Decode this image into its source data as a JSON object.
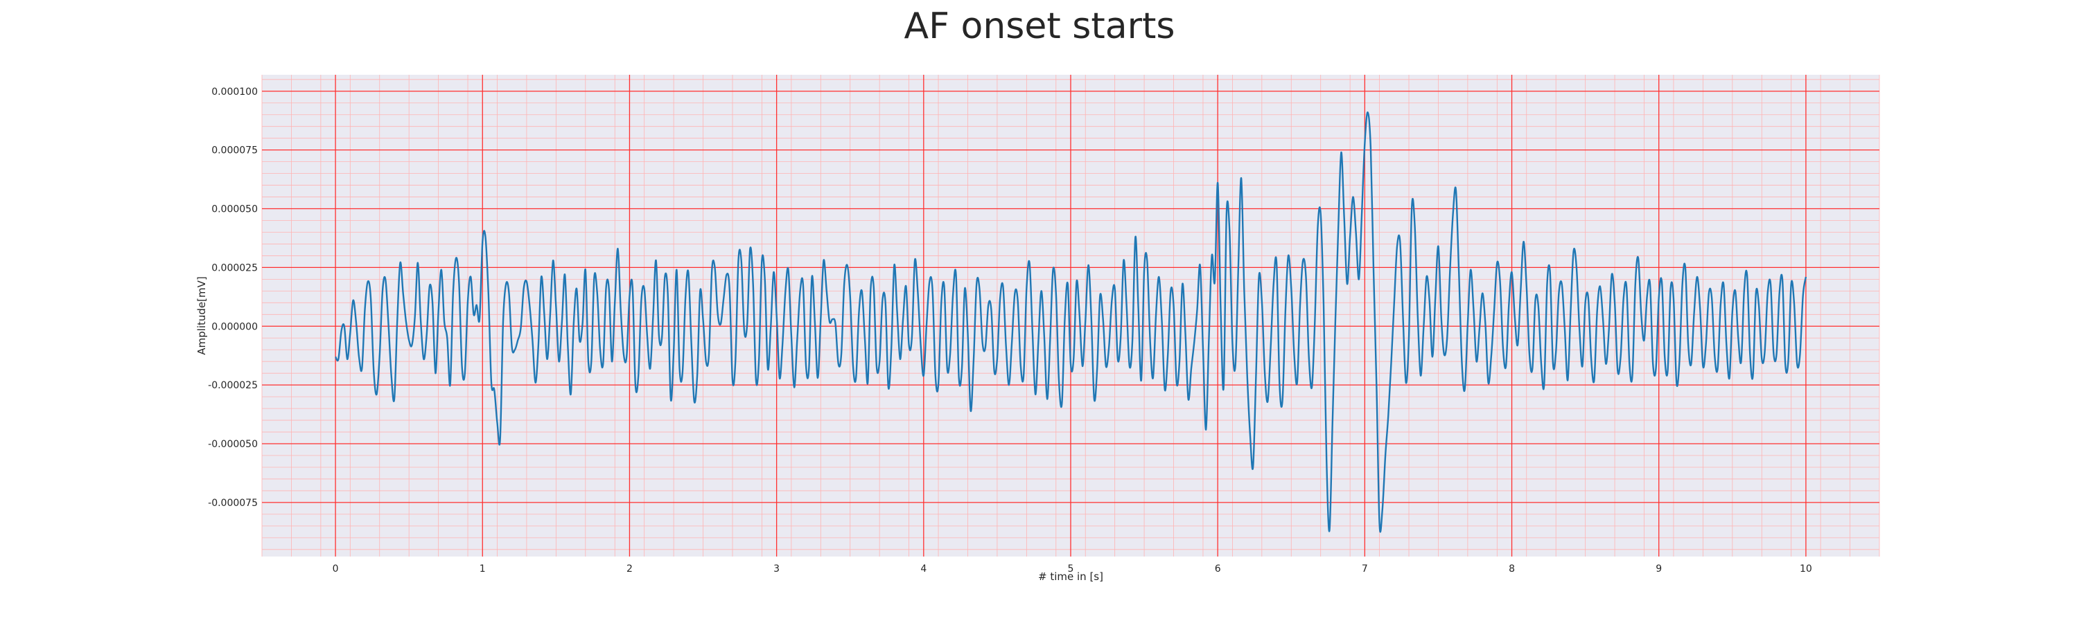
{
  "chart_data": {
    "type": "line",
    "title": "AF onset starts",
    "xlabel": "# time in [s]",
    "ylabel": "Amplitude[mV]",
    "xlim": [
      -0.5,
      10.5
    ],
    "ylim": [
      -9.8e-05,
      0.000107
    ],
    "xticks": [
      0,
      1,
      2,
      3,
      4,
      5,
      6,
      7,
      8,
      9,
      10
    ],
    "xtick_labels": [
      "0",
      "1",
      "2",
      "3",
      "4",
      "5",
      "6",
      "7",
      "8",
      "9",
      "10"
    ],
    "yticks": [
      0.0001,
      7.5e-05,
      5e-05,
      2.5e-05,
      0,
      -2.5e-05,
      -5e-05,
      -7.5e-05
    ],
    "ytick_labels": [
      "0.000100",
      "0.000075",
      "0.000050",
      "0.000025",
      "0.000000",
      "-0.000025",
      "-0.000050",
      "-0.000075"
    ],
    "grid": true,
    "series": [
      {
        "color": "#1f77b4",
        "x": [
          0,
          0.02,
          0.04,
          0.06,
          0.08,
          0.1,
          0.12,
          0.14,
          0.16,
          0.18,
          0.2,
          0.22,
          0.24,
          0.26,
          0.28,
          0.3,
          0.32,
          0.34,
          0.36,
          0.38,
          0.4,
          0.42,
          0.44,
          0.46,
          0.48,
          0.5,
          0.52,
          0.54,
          0.56,
          0.58,
          0.6,
          0.62,
          0.64,
          0.66,
          0.68,
          0.7,
          0.72,
          0.74,
          0.76,
          0.78,
          0.8,
          0.82,
          0.84,
          0.86,
          0.88,
          0.9,
          0.92,
          0.94,
          0.96,
          0.98,
          1,
          1.02,
          1.04,
          1.06,
          1.08,
          1.1,
          1.12,
          1.14,
          1.16,
          1.18,
          1.2,
          1.22,
          1.24,
          1.26,
          1.28,
          1.3,
          1.32,
          1.34,
          1.36,
          1.38,
          1.4,
          1.42,
          1.44,
          1.46,
          1.48,
          1.5,
          1.52,
          1.54,
          1.56,
          1.58,
          1.6,
          1.62,
          1.64,
          1.66,
          1.68,
          1.7,
          1.72,
          1.74,
          1.76,
          1.78,
          1.8,
          1.82,
          1.84,
          1.86,
          1.88,
          1.9,
          1.92,
          1.94,
          1.96,
          1.98,
          2,
          2.02,
          2.04,
          2.06,
          2.08,
          2.1,
          2.12,
          2.14,
          2.16,
          2.18,
          2.2,
          2.22,
          2.24,
          2.26,
          2.28,
          2.3,
          2.32,
          2.34,
          2.36,
          2.38,
          2.4,
          2.42,
          2.44,
          2.46,
          2.48,
          2.5,
          2.52,
          2.54,
          2.56,
          2.58,
          2.6,
          2.62,
          2.64,
          2.66,
          2.68,
          2.7,
          2.72,
          2.74,
          2.76,
          2.78,
          2.8,
          2.82,
          2.84,
          2.86,
          2.88,
          2.9,
          2.92,
          2.94,
          2.96,
          2.98,
          3,
          3.02,
          3.04,
          3.06,
          3.08,
          3.1,
          3.12,
          3.14,
          3.16,
          3.18,
          3.2,
          3.22,
          3.24,
          3.26,
          3.28,
          3.3,
          3.32,
          3.34,
          3.36,
          3.38,
          3.4,
          3.42,
          3.44,
          3.46,
          3.48,
          3.5,
          3.52,
          3.54,
          3.56,
          3.58,
          3.6,
          3.62,
          3.64,
          3.66,
          3.68,
          3.7,
          3.72,
          3.74,
          3.76,
          3.78,
          3.8,
          3.82,
          3.84,
          3.86,
          3.88,
          3.9,
          3.92,
          3.94,
          3.96,
          3.98,
          4,
          4.02,
          4.04,
          4.06,
          4.08,
          4.1,
          4.12,
          4.14,
          4.16,
          4.18,
          4.2,
          4.22,
          4.24,
          4.26,
          4.28,
          4.3,
          4.32,
          4.34,
          4.36,
          4.38,
          4.4,
          4.42,
          4.44,
          4.46,
          4.48,
          4.5,
          4.52,
          4.54,
          4.56,
          4.58,
          4.6,
          4.62,
          4.64,
          4.66,
          4.68,
          4.7,
          4.72,
          4.74,
          4.76,
          4.78,
          4.8,
          4.82,
          4.84,
          4.86,
          4.88,
          4.9,
          4.92,
          4.94,
          4.96,
          4.98,
          5,
          5.02,
          5.04,
          5.06,
          5.08,
          5.1,
          5.12,
          5.14,
          5.16,
          5.18,
          5.2,
          5.22,
          5.24,
          5.26,
          5.28,
          5.3,
          5.32,
          5.34,
          5.36,
          5.38,
          5.4,
          5.42,
          5.44,
          5.46,
          5.48,
          5.5,
          5.52,
          5.54,
          5.56,
          5.58,
          5.6,
          5.62,
          5.64,
          5.66,
          5.68,
          5.7,
          5.72,
          5.74,
          5.76,
          5.78,
          5.8,
          5.82,
          5.84,
          5.86,
          5.88,
          5.9,
          5.92,
          5.94,
          5.96,
          5.98,
          6,
          6.02,
          6.04,
          6.06,
          6.08,
          6.1,
          6.12,
          6.14,
          6.16,
          6.18,
          6.2,
          6.22,
          6.24,
          6.26,
          6.28,
          6.3,
          6.32,
          6.34,
          6.36,
          6.38,
          6.4,
          6.42,
          6.44,
          6.46,
          6.48,
          6.5,
          6.52,
          6.54,
          6.56,
          6.58,
          6.6,
          6.62,
          6.64,
          6.66,
          6.68,
          6.7,
          6.72,
          6.74,
          6.76,
          6.78,
          6.8,
          6.82,
          6.84,
          6.86,
          6.88,
          6.9,
          6.92,
          6.94,
          6.96,
          6.98,
          7,
          7.02,
          7.04,
          7.06,
          7.08,
          7.1,
          7.12,
          7.14,
          7.16,
          7.18,
          7.2,
          7.22,
          7.24,
          7.26,
          7.28,
          7.3,
          7.32,
          7.34,
          7.36,
          7.38,
          7.4,
          7.42,
          7.44,
          7.46,
          7.48,
          7.5,
          7.52,
          7.54,
          7.56,
          7.58,
          7.6,
          7.62,
          7.64,
          7.66,
          7.68,
          7.7,
          7.72,
          7.74,
          7.76,
          7.78,
          7.8,
          7.82,
          7.84,
          7.86,
          7.88,
          7.9,
          7.92,
          7.94,
          7.96,
          7.98,
          8,
          8.02,
          8.04,
          8.06,
          8.08,
          8.1,
          8.12,
          8.14,
          8.16,
          8.18,
          8.2,
          8.22,
          8.24,
          8.26,
          8.28,
          8.3,
          8.32,
          8.34,
          8.36,
          8.38,
          8.4,
          8.42,
          8.44,
          8.46,
          8.48,
          8.5,
          8.52,
          8.54,
          8.56,
          8.58,
          8.6,
          8.62,
          8.64,
          8.66,
          8.68,
          8.7,
          8.72,
          8.74,
          8.76,
          8.78,
          8.8,
          8.82,
          8.84,
          8.86,
          8.88,
          8.9,
          8.92,
          8.94,
          8.96,
          8.98,
          9,
          9.02,
          9.04,
          9.06,
          9.08,
          9.1,
          9.12,
          9.14,
          9.16,
          9.18,
          9.2,
          9.22,
          9.24,
          9.26,
          9.28,
          9.3,
          9.32,
          9.34,
          9.36,
          9.38,
          9.4,
          9.42,
          9.44,
          9.46,
          9.48,
          9.5,
          9.52,
          9.54,
          9.56,
          9.58,
          9.6,
          9.62,
          9.64,
          9.66,
          9.68,
          9.7,
          9.72,
          9.74,
          9.76,
          9.78,
          9.8,
          9.82,
          9.84,
          9.86,
          9.88,
          9.9,
          9.92,
          9.94,
          9.96,
          9.98,
          10
        ],
        "y": [
          -1.3e-05,
          -1.4e-05,
          -2e-06,
          0,
          -1.4e-05,
          -3e-06,
          1.1e-05,
          2e-06,
          -1.3e-05,
          -1.8e-05,
          7e-06,
          1.9e-05,
          1.2e-05,
          -1.9e-05,
          -2.9e-05,
          -1.3e-05,
          1.5e-05,
          2e-05,
          1e-06,
          -2.1e-05,
          -3.1e-05,
          2e-06,
          2.7e-05,
          1.4e-05,
          2e-06,
          -6e-06,
          -8e-06,
          4e-06,
          2.7e-05,
          2e-06,
          -1.4e-05,
          -4e-06,
          1.7e-05,
          1e-05,
          -2e-05,
          6e-06,
          2.4e-05,
          2e-06,
          -5e-06,
          -2.5e-05,
          1.4e-05,
          2.9e-05,
          1.9e-05,
          -1.7e-05,
          -2e-05,
          1.1e-05,
          2.1e-05,
          5e-06,
          9e-06,
          3e-06,
          3.6e-05,
          3.8e-05,
          1.4e-05,
          -2.4e-05,
          -2.7e-05,
          -4.1e-05,
          -4.8e-05,
          2e-06,
          1.8e-05,
          1.4e-05,
          -9e-06,
          -1e-05,
          -6e-06,
          -1e-06,
          1.6e-05,
          1.9e-05,
          9e-06,
          -6e-06,
          -2.4e-05,
          -8e-06,
          2.1e-05,
          5e-06,
          -1.4e-05,
          5e-06,
          2.8e-05,
          8e-06,
          -1.5e-05,
          2e-06,
          2.2e-05,
          -8e-06,
          -2.9e-05,
          1e-06,
          1.6e-05,
          -6e-06,
          1e-06,
          2.4e-05,
          -1.5e-05,
          -1.5e-05,
          2.1e-05,
          1.4e-05,
          -1e-05,
          -1.6e-05,
          1.6e-05,
          1.6e-05,
          -1.5e-05,
          1e-05,
          3.3e-05,
          7e-06,
          -1.2e-05,
          -1.3e-05,
          1.3e-05,
          1.7e-05,
          -2.5e-05,
          -2.1e-05,
          1.1e-05,
          1.6e-05,
          -4e-06,
          -1.8e-05,
          4e-06,
          2.8e-05,
          -4e-06,
          -5e-06,
          2.1e-05,
          1.4e-05,
          -3.1e-05,
          -1.1e-05,
          2.4e-05,
          -1.8e-05,
          -2e-05,
          1.2e-05,
          2.3e-05,
          -7e-06,
          -3.2e-05,
          -2.1e-05,
          1.5e-05,
          3e-06,
          -1.5e-05,
          -1.2e-05,
          2.4e-05,
          2.5e-05,
          5e-06,
          1e-06,
          1.2e-05,
          2.2e-05,
          1.6e-05,
          -2.3e-05,
          -1.5e-05,
          2.8e-05,
          2.8e-05,
          -2e-06,
          1e-06,
          3.3e-05,
          1.8e-05,
          -2.3e-05,
          -1.4e-05,
          2.8e-05,
          2e-05,
          -1.8e-05,
          -1e-06,
          2.3e-05,
          5e-06,
          -2.2e-05,
          -8e-06,
          1.5e-05,
          2.4e-05,
          -4e-06,
          -2.6e-05,
          -6e-06,
          1.5e-05,
          1.8e-05,
          -1.7e-05,
          -1.8e-05,
          2.1e-05,
          2e-06,
          -2.2e-05,
          3e-06,
          2.8e-05,
          1.5e-05,
          2e-06,
          3e-06,
          1e-06,
          -1.6e-05,
          -1.2e-05,
          1.8e-05,
          2.6e-05,
          1.3e-05,
          -1.7e-05,
          -2.2e-05,
          6e-06,
          1.5e-05,
          -5e-06,
          -2.4e-05,
          1.6e-05,
          1.7e-05,
          -1.7e-05,
          -1.5e-05,
          1.1e-05,
          1e-05,
          -2.6e-05,
          -1e-05,
          2.6e-05,
          6e-06,
          -1.4e-05,
          3e-06,
          1.7e-05,
          -8e-06,
          -5e-06,
          2.8e-05,
          1.5e-05,
          -8e-06,
          -2.1e-05,
          1e-06,
          1.9e-05,
          1.6e-05,
          -2.1e-05,
          -2.5e-05,
          1e-05,
          1.7e-05,
          -1.8e-05,
          -1.2e-05,
          1.4e-05,
          2.2e-05,
          -2.2e-05,
          -1.8e-05,
          1.6e-05,
          -3e-06,
          -3.6e-05,
          -1.4e-05,
          1.8e-05,
          1.6e-05,
          -7e-06,
          -9e-06,
          9e-06,
          7e-06,
          -1.9e-05,
          -1.4e-05,
          1.2e-05,
          1.7e-05,
          -8e-06,
          -2.5e-05,
          -7e-06,
          1.4e-05,
          1.1e-05,
          -1.7e-05,
          -2.1e-05,
          1.6e-05,
          2.7e-05,
          -2e-06,
          -2.9e-05,
          -7e-06,
          1.5e-05,
          -4e-06,
          -3.1e-05,
          -6e-06,
          2.4e-05,
          1.4e-05,
          -2.3e-05,
          -3.3e-05,
          3e-06,
          1.8e-05,
          -1.6e-05,
          -1.4e-05,
          1.9e-05,
          5e-06,
          -1.7e-05,
          2e-06,
          2.6e-05,
          4e-06,
          -3.1e-05,
          -1.8e-05,
          1.3e-05,
          3e-06,
          -1.7e-05,
          -9e-06,
          1.1e-05,
          1.6e-05,
          -1.4e-05,
          -5e-06,
          2.8e-05,
          9e-06,
          -1.7e-05,
          -6e-06,
          3.8e-05,
          8e-06,
          -2.3e-05,
          2.4e-05,
          2.8e-05,
          -6e-06,
          -2.2e-05,
          5e-06,
          2.1e-05,
          2e-06,
          -2.7e-05,
          -1.3e-05,
          1.5e-05,
          9e-06,
          -2.4e-05,
          -1.5e-05,
          1.8e-05,
          -3e-06,
          -3.1e-05,
          -1.8e-05,
          -7e-06,
          7e-06,
          2.6e-05,
          -1e-05,
          -4.4e-05,
          -5e-06,
          3e-05,
          1.9e-05,
          6.1e-05,
          8e-06,
          -2.6e-05,
          4.8e-05,
          4.1e-05,
          -7e-06,
          -1.7e-05,
          2.5e-05,
          6.3e-05,
          1.5e-05,
          -2e-05,
          -4.6e-05,
          -6e-05,
          -2.2e-05,
          2.1e-05,
          1.1e-05,
          -2e-05,
          -3.2e-05,
          -9e-06,
          1.8e-05,
          2.7e-05,
          -2.4e-05,
          -3.2e-05,
          6e-06,
          3e-05,
          1.6e-05,
          -1.2e-05,
          -2.4e-05,
          9e-06,
          2.8e-05,
          2.1e-05,
          -1.3e-05,
          -2.6e-05,
          1e-06,
          4.2e-05,
          4.8e-05,
          9e-06,
          -5.7e-05,
          -8.7e-05,
          -4.2e-05,
          2e-06,
          4.2e-05,
          7.4e-05,
          4.6e-05,
          1.8e-05,
          3.8e-05,
          5.5e-05,
          4e-05,
          2e-05,
          4.8e-05,
          7.8e-05,
          9.1e-05,
          7.6e-05,
          2.3e-05,
          -2.5e-05,
          -8.4e-05,
          -7.8e-05,
          -5.5e-05,
          -3.8e-05,
          -1.5e-05,
          1e-05,
          3.4e-05,
          3.6e-05,
          4e-06,
          -2.4e-05,
          -5e-06,
          5.1e-05,
          4.3e-05,
          5e-06,
          -2.1e-05,
          -1e-06,
          2.1e-05,
          1.1e-05,
          -1.3e-05,
          1.2e-05,
          3.4e-05,
          4e-06,
          -1.2e-05,
          -5e-06,
          2.4e-05,
          4.8e-05,
          5.8e-05,
          2.3e-05,
          -1.5e-05,
          -2.7e-05,
          1e-06,
          2.4e-05,
          7e-06,
          -1.5e-05,
          -1e-06,
          1.4e-05,
          1e-06,
          -2.4e-05,
          -1.3e-05,
          7e-06,
          2.7e-05,
          1.9e-05,
          -9e-06,
          -1.7e-05,
          9e-06,
          2.3e-05,
          4e-06,
          -8e-06,
          1.5e-05,
          3.6e-05,
          1.7e-05,
          -1.2e-05,
          -1.8e-05,
          1.1e-05,
          9e-06,
          -1.6e-05,
          -2.5e-05,
          1.8e-05,
          2.3e-05,
          -1.6e-05,
          -1.1e-05,
          1.4e-05,
          1.8e-05,
          -1e-06,
          -2.3e-05,
          6e-06,
          3.2e-05,
          2.5e-05,
          -1e-06,
          -1.7e-05,
          1e-05,
          1.2e-05,
          -1.4e-05,
          -2.3e-05,
          6e-06,
          1.7e-05,
          3e-06,
          -1.6e-05,
          -2e-06,
          2.2e-05,
          1e-05,
          -1.9e-05,
          -1.3e-05,
          1.2e-05,
          1.7e-05,
          -1.6e-05,
          -2.1e-05,
          1.8e-05,
          2.9e-05,
          5e-06,
          -6e-06,
          1.3e-05,
          1.8e-05,
          -1.6e-05,
          -1.8e-05,
          1.2e-05,
          1.9e-05,
          -1.3e-05,
          -1.9e-05,
          1.6e-05,
          1.2e-05,
          -2.4e-05,
          -1.5e-05,
          1.8e-05,
          2.5e-05,
          -8e-06,
          -1.6e-05,
          6e-06,
          2.1e-05,
          8e-06,
          -1.7e-05,
          -8e-06,
          1.4e-05,
          1.2e-05,
          -1.3e-05,
          -1.8e-05,
          9e-06,
          1.8e-05,
          -8e-06,
          -2.2e-05,
          6e-06,
          1.5e-05,
          -5e-06,
          -1.5e-05,
          1.5e-05,
          2.2e-05,
          -1.2e-05,
          -2.1e-05,
          1.4e-05,
          9e-06,
          -1.4e-05,
          -1.1e-05,
          1.4e-05,
          1.8e-05,
          -1.1e-05,
          -1.2e-05,
          1.4e-05,
          2e-05,
          -1.6e-05,
          -1.5e-05,
          1.8e-05,
          1e-05,
          -1.6e-05,
          -1.2e-05,
          1.3e-05,
          2.1e-05
        ]
      }
    ]
  }
}
